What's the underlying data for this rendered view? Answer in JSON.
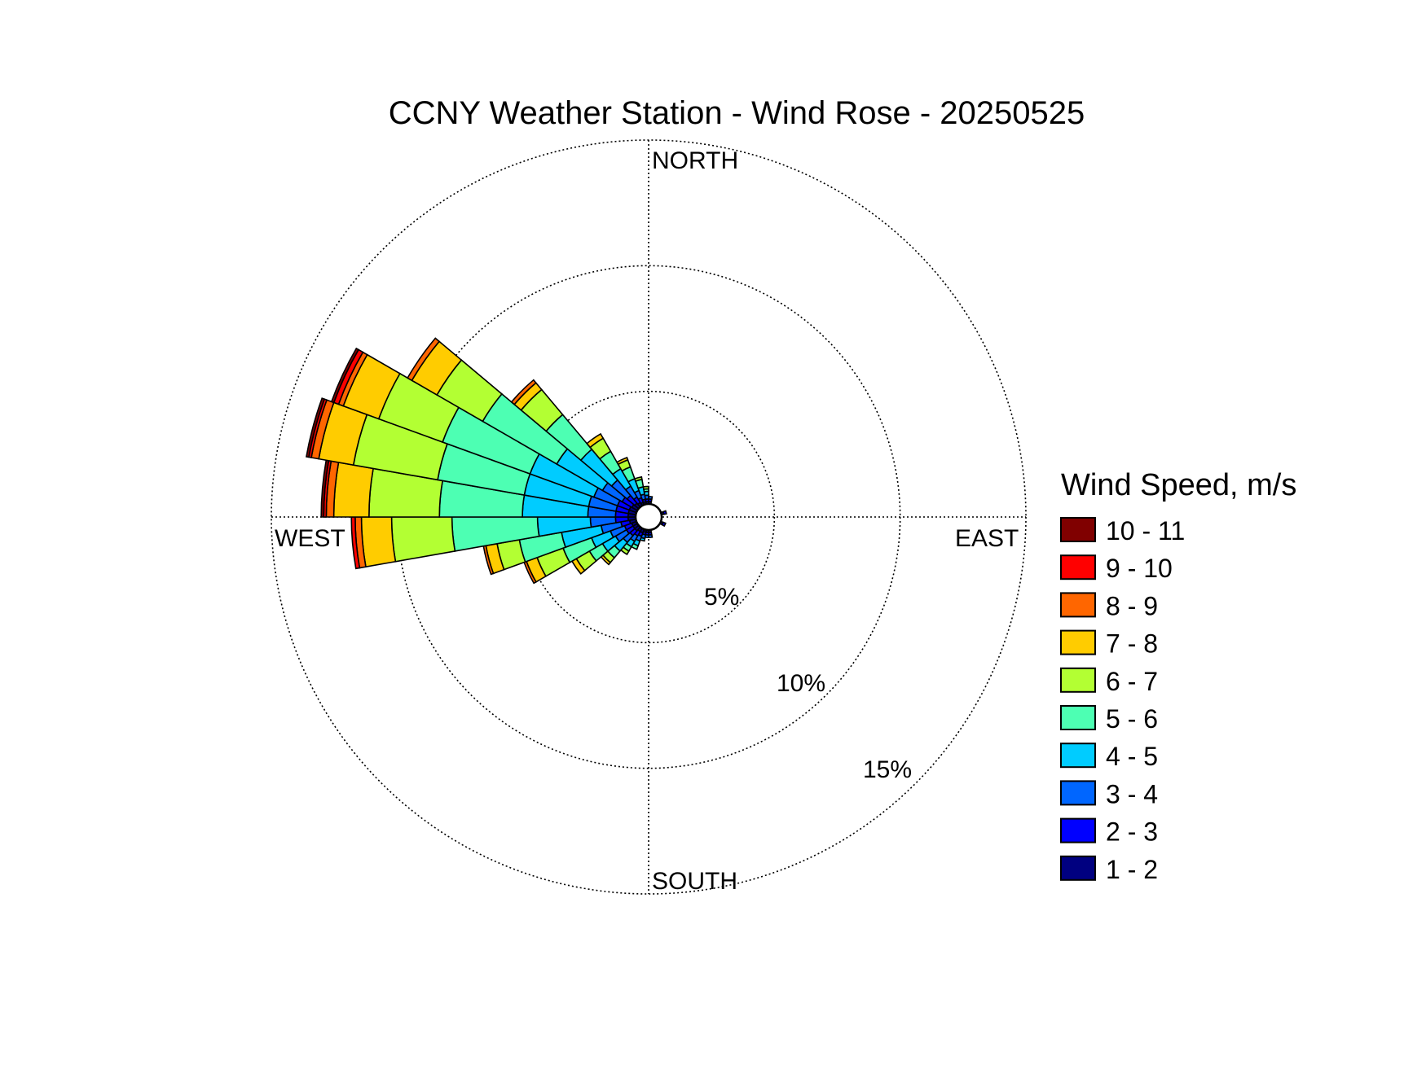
{
  "chart_data": {
    "type": "wind_rose",
    "title": "CCNY Weather Station - Wind Rose - 20250525",
    "direction_labels": {
      "north": "NORTH",
      "south": "SOUTH",
      "east": "EAST",
      "west": "WEST"
    },
    "radial_ticks": [
      {
        "value": 5,
        "label": "5%"
      },
      {
        "value": 10,
        "label": "10%"
      },
      {
        "value": 15,
        "label": "15%"
      }
    ],
    "r_max": 15,
    "grid": true,
    "calm_circle": true,
    "legend": {
      "title": "Wind Speed, m/s",
      "placement": "right",
      "entries": [
        "10 - 11",
        "9 - 10",
        "8 - 9",
        "7 - 8",
        "6 - 7",
        "5 - 6",
        "4 - 5",
        "3 - 4",
        "2 - 3",
        "1 - 2"
      ]
    },
    "speed_bins": [
      "1 - 2",
      "2 - 3",
      "3 - 4",
      "4 - 5",
      "5 - 6",
      "6 - 7",
      "7 - 8",
      "8 - 9",
      "9 - 10",
      "10 - 11"
    ],
    "colors": [
      "#000080",
      "#0000ff",
      "#0066ff",
      "#00ccff",
      "#4dffb3",
      "#b3ff33",
      "#ffcc00",
      "#ff6600",
      "#ff0000",
      "#800000"
    ],
    "sector_width_deg": 10,
    "sectors": [
      {
        "direction_deg": 175,
        "cumulative_percent": [
          0.1,
          0.2,
          0.3
        ]
      },
      {
        "direction_deg": 185,
        "cumulative_percent": [
          0.1,
          0.2,
          0.3
        ]
      },
      {
        "direction_deg": 195,
        "cumulative_percent": [
          0.1,
          0.2,
          0.35,
          0.45
        ]
      },
      {
        "direction_deg": 205,
        "cumulative_percent": [
          0.15,
          0.3,
          0.5,
          0.7,
          0.85
        ]
      },
      {
        "direction_deg": 215,
        "cumulative_percent": [
          0.15,
          0.35,
          0.6,
          0.85,
          1.05,
          1.2
        ]
      },
      {
        "direction_deg": 225,
        "cumulative_percent": [
          0.2,
          0.45,
          0.8,
          1.25,
          1.6,
          1.85,
          1.95
        ]
      },
      {
        "direction_deg": 235,
        "cumulative_percent": [
          0.2,
          0.5,
          1.0,
          1.6,
          2.2,
          2.8,
          3.0
        ]
      },
      {
        "direction_deg": 245,
        "cumulative_percent": [
          0.2,
          0.5,
          1.1,
          1.9,
          3.1,
          4.2,
          4.65,
          4.75
        ]
      },
      {
        "direction_deg": 255,
        "cumulative_percent": [
          0.25,
          0.6,
          1.4,
          3.0,
          4.7,
          5.6,
          6.05,
          6.15
        ]
      },
      {
        "direction_deg": 265,
        "cumulative_percent": [
          0.3,
          0.8,
          1.8,
          3.9,
          7.3,
          9.7,
          10.9,
          11.15,
          11.3
        ]
      },
      {
        "direction_deg": 275,
        "cumulative_percent": [
          0.3,
          0.8,
          1.9,
          4.5,
          7.8,
          10.6,
          12.0,
          12.3,
          12.4,
          12.5
        ]
      },
      {
        "direction_deg": 285,
        "cumulative_percent": [
          0.3,
          0.8,
          1.9,
          4.5,
          8.0,
          11.4,
          12.8,
          13.1,
          13.2,
          13.3
        ]
      },
      {
        "direction_deg": 295,
        "cumulative_percent": [
          0.3,
          0.8,
          1.8,
          4.5,
          8.2,
          10.9,
          12.4,
          12.6,
          12.8,
          12.9
        ]
      },
      {
        "direction_deg": 305,
        "cumulative_percent": [
          0.25,
          0.7,
          1.6,
          3.7,
          7.1,
          9.2,
          10.35,
          10.55
        ]
      },
      {
        "direction_deg": 315,
        "cumulative_percent": [
          0.2,
          0.6,
          1.4,
          3.0,
          4.8,
          6.1,
          6.45,
          6.6
        ]
      },
      {
        "direction_deg": 325,
        "cumulative_percent": [
          0.15,
          0.4,
          0.9,
          1.7,
          2.5,
          3.1,
          3.3
        ]
      },
      {
        "direction_deg": 335,
        "cumulative_percent": [
          0.1,
          0.3,
          0.6,
          1.1,
          1.6,
          1.9,
          2.0
        ]
      },
      {
        "direction_deg": 345,
        "cumulative_percent": [
          0.1,
          0.2,
          0.4,
          0.7,
          1.0,
          1.1
        ]
      },
      {
        "direction_deg": 355,
        "cumulative_percent": [
          0.1,
          0.2,
          0.35,
          0.5,
          0.6,
          0.7
        ]
      },
      {
        "direction_deg": 5,
        "cumulative_percent": [
          0.1,
          0.2,
          0.3
        ]
      },
      {
        "direction_deg": 75,
        "cumulative_percent": [
          0.1,
          0.2
        ]
      },
      {
        "direction_deg": 115,
        "cumulative_percent": [
          0.1,
          0.2
        ]
      }
    ]
  }
}
